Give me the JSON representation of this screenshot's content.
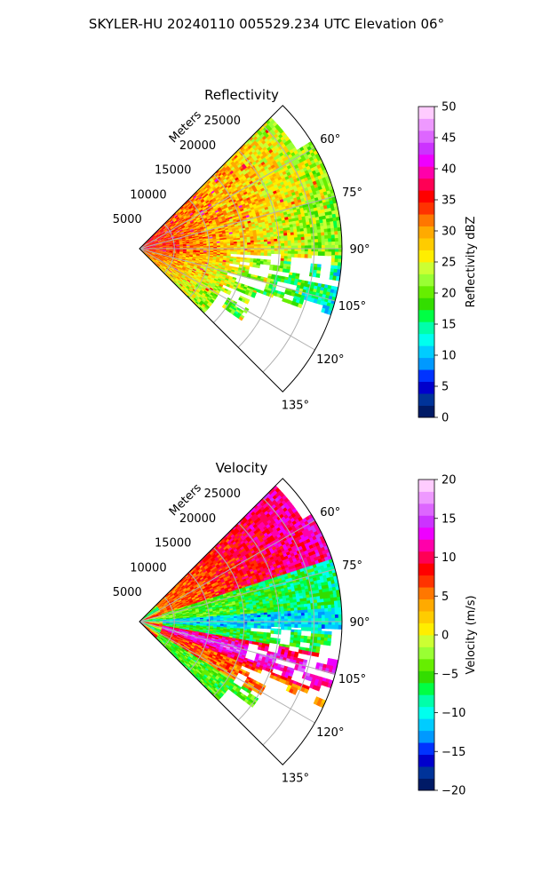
{
  "figure": {
    "suptitle": "SKYLER-HU  20240110  005529.234 UTC Elevation 06°"
  },
  "chart_data": [
    {
      "type": "heatmap",
      "subtype": "polar-sector-ppi",
      "title": "Reflectivity",
      "range_label": "Meters",
      "range_ticks": [
        "5000",
        "10000",
        "15000",
        "20000",
        "25000"
      ],
      "range_tick_values": [
        5000,
        10000,
        15000,
        20000,
        25000
      ],
      "rmax": 29000,
      "azimuth_range": [
        45,
        135
      ],
      "azimuth_ticks": [
        "60°",
        "75°",
        "90°",
        "105°",
        "120°",
        "135°"
      ],
      "azimuth_tick_values": [
        60,
        75,
        90,
        105,
        120,
        135
      ],
      "grid": true,
      "colorbar": {
        "label": "Reflectivity dBZ",
        "vmin": 0,
        "vmax": 50,
        "ticks": [
          "0",
          "5",
          "10",
          "15",
          "20",
          "25",
          "30",
          "35",
          "40",
          "45",
          "50"
        ],
        "tick_values": [
          0,
          5,
          10,
          15,
          20,
          25,
          30,
          35,
          40,
          45,
          50
        ],
        "colors": [
          "#001a66",
          "#003399",
          "#0000cc",
          "#0033ff",
          "#0099ff",
          "#00ccff",
          "#00ffee",
          "#00ffaa",
          "#00ff44",
          "#33dd00",
          "#66ee00",
          "#99ff33",
          "#ccff33",
          "#ffee00",
          "#ffcc00",
          "#ffaa00",
          "#ff7700",
          "#ff3300",
          "#ff0000",
          "#ff0055",
          "#ff00aa",
          "#ee00ff",
          "#cc33ff",
          "#dd66ff",
          "#ee99ff",
          "#ffccff"
        ]
      },
      "pattern": "reflectivity: 30-40 dBZ (red) near origin, 20-30 dBZ (yellow-orange) mid-range, 15-22 dBZ (green) toward east/south-east with gaps (no data) beyond ~15 km on the south-east side"
    },
    {
      "type": "heatmap",
      "subtype": "polar-sector-ppi",
      "title": "Velocity",
      "range_label": "Meters",
      "range_ticks": [
        "5000",
        "10000",
        "15000",
        "20000",
        "25000"
      ],
      "range_tick_values": [
        5000,
        10000,
        15000,
        20000,
        25000
      ],
      "rmax": 29000,
      "azimuth_range": [
        45,
        135
      ],
      "azimuth_ticks": [
        "60°",
        "75°",
        "90°",
        "105°",
        "120°",
        "135°"
      ],
      "azimuth_tick_values": [
        60,
        75,
        90,
        105,
        120,
        135
      ],
      "grid": true,
      "colorbar": {
        "label": "Velocity (m/s)",
        "vmin": -20,
        "vmax": 20,
        "ticks": [
          "−20",
          "−15",
          "−10",
          "−5",
          "0",
          "5",
          "10",
          "15",
          "20"
        ],
        "tick_values": [
          -20,
          -15,
          -10,
          -5,
          0,
          5,
          10,
          15,
          20
        ],
        "colors": [
          "#001a66",
          "#003399",
          "#0000cc",
          "#0033ff",
          "#0099ff",
          "#00ccff",
          "#00ffee",
          "#00ffaa",
          "#00ff44",
          "#33dd00",
          "#66ee00",
          "#99ff33",
          "#ccff33",
          "#ffee00",
          "#ffcc00",
          "#ffaa00",
          "#ff7700",
          "#ff3300",
          "#ff0000",
          "#ff0055",
          "#ff00aa",
          "#ee00ff",
          "#cc33ff",
          "#dd66ff",
          "#ee99ff",
          "#ffccff"
        ]
      },
      "pattern": "velocity: +5 to +12 m/s (red/magenta) toward 60-75° and along a band near 95-110°, -5 to -10 m/s (green) near 80-90°, -10 to -12 m/s (cyan) narrow band near 90-95°"
    }
  ]
}
